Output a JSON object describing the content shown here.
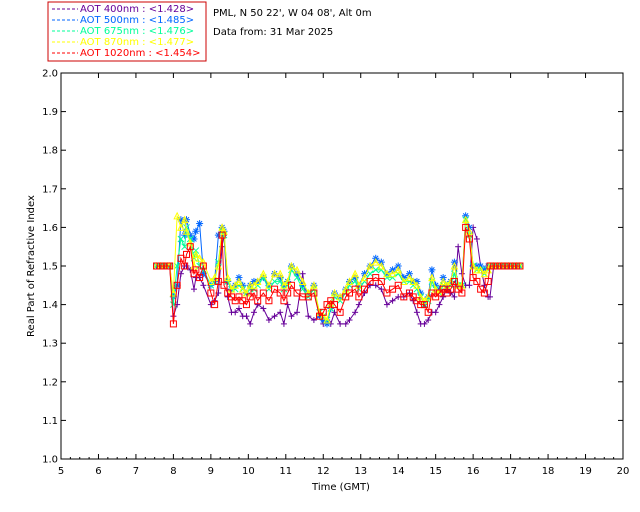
{
  "header": {
    "site": "PML, N 50 22', W 04 08', Alt 0m",
    "date": "Data from: 31 Mar 2025"
  },
  "chart_data": {
    "type": "scatter",
    "title": "",
    "xlabel": "Time (GMT)",
    "ylabel": "Real Part of Refractive Index",
    "xlim": [
      5,
      20
    ],
    "ylim": [
      1.0,
      2.0
    ],
    "x_ticks": [
      "5",
      "6",
      "7",
      "8",
      "9",
      "10",
      "11",
      "12",
      "13",
      "14",
      "15",
      "16",
      "17",
      "18",
      "19",
      "20"
    ],
    "y_ticks": [
      "1.0",
      "1.1",
      "1.2",
      "1.3",
      "1.4",
      "1.5",
      "1.6",
      "1.7",
      "1.8",
      "1.9",
      "2.0"
    ],
    "grid": false,
    "legend_position": "top-left",
    "series": [
      {
        "name": "AOT  400nm : <1.428>",
        "color": "#660099",
        "marker": "plus",
        "x": [
          7.55,
          7.65,
          7.75,
          7.85,
          7.9,
          8.0,
          8.1,
          8.2,
          8.3,
          8.35,
          8.45,
          8.55,
          8.6,
          8.7,
          8.8,
          9.0,
          9.1,
          9.2,
          9.3,
          9.35,
          9.45,
          9.55,
          9.65,
          9.75,
          9.85,
          9.95,
          10.05,
          10.15,
          10.25,
          10.4,
          10.55,
          10.7,
          10.85,
          10.95,
          11.05,
          11.15,
          11.3,
          11.45,
          11.6,
          11.75,
          11.9,
          12.0,
          12.1,
          12.2,
          12.3,
          12.45,
          12.6,
          12.7,
          12.85,
          12.95,
          13.1,
          13.25,
          13.4,
          13.55,
          13.7,
          13.85,
          14.0,
          14.15,
          14.3,
          14.4,
          14.5,
          14.6,
          14.7,
          14.8,
          14.9,
          15.0,
          15.1,
          15.2,
          15.3,
          15.4,
          15.5,
          15.6,
          15.7,
          15.8,
          15.9,
          16.0,
          16.1,
          16.2,
          16.3,
          16.4,
          16.45,
          16.55,
          16.65,
          16.75,
          16.85,
          16.95,
          17.05,
          17.15,
          17.25
        ],
        "y": [
          1.5,
          1.5,
          1.5,
          1.5,
          1.5,
          1.37,
          1.4,
          1.48,
          1.5,
          1.5,
          1.49,
          1.44,
          1.47,
          1.47,
          1.45,
          1.4,
          1.41,
          1.43,
          1.55,
          1.58,
          1.42,
          1.38,
          1.38,
          1.39,
          1.37,
          1.37,
          1.35,
          1.38,
          1.4,
          1.39,
          1.36,
          1.37,
          1.38,
          1.35,
          1.4,
          1.37,
          1.38,
          1.48,
          1.37,
          1.36,
          1.37,
          1.35,
          1.36,
          1.35,
          1.38,
          1.35,
          1.35,
          1.36,
          1.38,
          1.4,
          1.43,
          1.45,
          1.45,
          1.44,
          1.4,
          1.41,
          1.42,
          1.42,
          1.43,
          1.41,
          1.38,
          1.35,
          1.35,
          1.36,
          1.38,
          1.38,
          1.4,
          1.42,
          1.44,
          1.43,
          1.42,
          1.55,
          1.48,
          1.45,
          1.45,
          1.6,
          1.57,
          1.5,
          1.45,
          1.42,
          1.42,
          1.5,
          1.5,
          1.5,
          1.5,
          1.5,
          1.5,
          1.5,
          1.5
        ]
      },
      {
        "name": "AOT  500nm : <1.485>",
        "color": "#0066ff",
        "marker": "asterisk",
        "x": [
          7.55,
          7.65,
          7.75,
          7.85,
          7.9,
          8.0,
          8.1,
          8.2,
          8.3,
          8.35,
          8.45,
          8.55,
          8.6,
          8.7,
          8.8,
          9.0,
          9.1,
          9.2,
          9.3,
          9.35,
          9.45,
          9.55,
          9.65,
          9.75,
          9.85,
          9.95,
          10.05,
          10.15,
          10.25,
          10.4,
          10.55,
          10.7,
          10.85,
          10.95,
          11.05,
          11.15,
          11.3,
          11.45,
          11.6,
          11.75,
          11.9,
          12.0,
          12.1,
          12.2,
          12.3,
          12.45,
          12.6,
          12.7,
          12.85,
          12.95,
          13.1,
          13.25,
          13.4,
          13.55,
          13.7,
          13.85,
          14.0,
          14.15,
          14.3,
          14.4,
          14.5,
          14.6,
          14.7,
          14.8,
          14.9,
          15.0,
          15.1,
          15.2,
          15.3,
          15.4,
          15.5,
          15.6,
          15.7,
          15.8,
          15.9,
          16.0,
          16.1,
          16.2,
          16.3,
          16.4,
          16.45,
          16.55,
          16.65,
          16.75,
          16.85,
          16.95,
          17.05,
          17.15,
          17.25
        ],
        "y": [
          1.5,
          1.5,
          1.5,
          1.5,
          1.5,
          1.42,
          1.45,
          1.62,
          1.58,
          1.62,
          1.58,
          1.57,
          1.59,
          1.61,
          1.48,
          1.45,
          1.46,
          1.58,
          1.6,
          1.59,
          1.46,
          1.44,
          1.45,
          1.47,
          1.45,
          1.43,
          1.45,
          1.46,
          1.46,
          1.47,
          1.45,
          1.48,
          1.47,
          1.45,
          1.46,
          1.5,
          1.48,
          1.45,
          1.43,
          1.45,
          1.37,
          1.36,
          1.35,
          1.39,
          1.43,
          1.42,
          1.44,
          1.46,
          1.47,
          1.45,
          1.48,
          1.5,
          1.52,
          1.51,
          1.48,
          1.49,
          1.5,
          1.47,
          1.48,
          1.46,
          1.46,
          1.43,
          1.4,
          1.42,
          1.49,
          1.45,
          1.44,
          1.47,
          1.45,
          1.46,
          1.51,
          1.45,
          1.45,
          1.63,
          1.6,
          1.5,
          1.5,
          1.5,
          1.49,
          1.5,
          1.5,
          1.5,
          1.5,
          1.5,
          1.5,
          1.5,
          1.5,
          1.5,
          1.5
        ]
      },
      {
        "name": "AOT  675nm : <1.476>",
        "color": "#00ff99",
        "marker": "x",
        "x": [
          7.55,
          7.65,
          7.75,
          7.85,
          7.9,
          8.0,
          8.1,
          8.2,
          8.3,
          8.35,
          8.45,
          8.55,
          8.6,
          8.7,
          8.8,
          9.0,
          9.1,
          9.2,
          9.3,
          9.35,
          9.45,
          9.55,
          9.65,
          9.75,
          9.85,
          9.95,
          10.05,
          10.15,
          10.25,
          10.4,
          10.55,
          10.7,
          10.85,
          10.95,
          11.05,
          11.15,
          11.3,
          11.45,
          11.6,
          11.75,
          11.9,
          12.0,
          12.1,
          12.2,
          12.3,
          12.45,
          12.6,
          12.7,
          12.85,
          12.95,
          13.1,
          13.25,
          13.4,
          13.55,
          13.7,
          13.85,
          14.0,
          14.15,
          14.3,
          14.4,
          14.5,
          14.6,
          14.7,
          14.8,
          14.9,
          15.0,
          15.1,
          15.2,
          15.3,
          15.4,
          15.5,
          15.6,
          15.7,
          15.8,
          15.9,
          16.0,
          16.1,
          16.2,
          16.3,
          16.4,
          16.45,
          16.55,
          16.65,
          16.75,
          16.85,
          16.95,
          17.05,
          17.15,
          17.25
        ],
        "y": [
          1.5,
          1.5,
          1.5,
          1.5,
          1.5,
          1.4,
          1.5,
          1.57,
          1.55,
          1.6,
          1.57,
          1.52,
          1.54,
          1.5,
          1.49,
          1.45,
          1.46,
          1.51,
          1.59,
          1.58,
          1.46,
          1.44,
          1.44,
          1.45,
          1.44,
          1.43,
          1.44,
          1.44,
          1.45,
          1.47,
          1.44,
          1.46,
          1.46,
          1.44,
          1.45,
          1.49,
          1.47,
          1.44,
          1.42,
          1.44,
          1.38,
          1.37,
          1.36,
          1.39,
          1.42,
          1.41,
          1.43,
          1.45,
          1.46,
          1.44,
          1.46,
          1.48,
          1.49,
          1.49,
          1.47,
          1.47,
          1.48,
          1.46,
          1.46,
          1.45,
          1.44,
          1.42,
          1.4,
          1.41,
          1.46,
          1.44,
          1.43,
          1.45,
          1.44,
          1.45,
          1.48,
          1.45,
          1.45,
          1.62,
          1.58,
          1.5,
          1.49,
          1.49,
          1.48,
          1.49,
          1.5,
          1.5,
          1.5,
          1.5,
          1.5,
          1.5,
          1.5,
          1.5,
          1.5
        ]
      },
      {
        "name": "AOT  870nm : <1.477>",
        "color": "#ffff00",
        "marker": "triangle",
        "x": [
          7.55,
          7.65,
          7.75,
          7.85,
          7.9,
          8.0,
          8.1,
          8.2,
          8.3,
          8.35,
          8.45,
          8.55,
          8.6,
          8.7,
          8.8,
          9.0,
          9.1,
          9.2,
          9.3,
          9.35,
          9.45,
          9.55,
          9.65,
          9.75,
          9.85,
          9.95,
          10.05,
          10.15,
          10.25,
          10.4,
          10.55,
          10.7,
          10.85,
          10.95,
          11.05,
          11.15,
          11.3,
          11.45,
          11.6,
          11.75,
          11.9,
          12.0,
          12.1,
          12.2,
          12.3,
          12.45,
          12.6,
          12.7,
          12.85,
          12.95,
          13.1,
          13.25,
          13.4,
          13.55,
          13.7,
          13.85,
          14.0,
          14.15,
          14.3,
          14.4,
          14.5,
          14.6,
          14.7,
          14.8,
          14.9,
          15.0,
          15.1,
          15.2,
          15.3,
          15.4,
          15.5,
          15.6,
          15.7,
          15.8,
          15.9,
          16.0,
          16.1,
          16.2,
          16.3,
          16.4,
          16.45,
          16.55,
          16.65,
          16.75,
          16.85,
          16.95,
          17.05,
          17.15,
          17.25
        ],
        "y": [
          1.5,
          1.5,
          1.5,
          1.5,
          1.5,
          1.43,
          1.63,
          1.6,
          1.62,
          1.59,
          1.56,
          1.5,
          1.53,
          1.52,
          1.51,
          1.46,
          1.47,
          1.5,
          1.6,
          1.59,
          1.47,
          1.44,
          1.45,
          1.46,
          1.44,
          1.43,
          1.45,
          1.45,
          1.46,
          1.48,
          1.45,
          1.48,
          1.48,
          1.45,
          1.46,
          1.5,
          1.49,
          1.46,
          1.43,
          1.45,
          1.38,
          1.37,
          1.36,
          1.4,
          1.43,
          1.42,
          1.44,
          1.46,
          1.48,
          1.45,
          1.47,
          1.5,
          1.51,
          1.5,
          1.48,
          1.48,
          1.49,
          1.46,
          1.47,
          1.46,
          1.45,
          1.42,
          1.41,
          1.42,
          1.47,
          1.44,
          1.43,
          1.46,
          1.45,
          1.46,
          1.5,
          1.45,
          1.45,
          1.62,
          1.59,
          1.5,
          1.49,
          1.49,
          1.48,
          1.49,
          1.5,
          1.5,
          1.5,
          1.5,
          1.5,
          1.5,
          1.5,
          1.5,
          1.5
        ]
      },
      {
        "name": "AOT 1020nm : <1.454>",
        "color": "#ff0000",
        "marker": "square",
        "x": [
          7.55,
          7.65,
          7.75,
          7.85,
          7.9,
          8.0,
          8.1,
          8.2,
          8.3,
          8.35,
          8.45,
          8.55,
          8.6,
          8.7,
          8.8,
          9.0,
          9.1,
          9.2,
          9.3,
          9.35,
          9.45,
          9.55,
          9.65,
          9.75,
          9.85,
          9.95,
          10.05,
          10.15,
          10.25,
          10.4,
          10.55,
          10.7,
          10.85,
          10.95,
          11.05,
          11.15,
          11.3,
          11.45,
          11.6,
          11.75,
          11.9,
          12.0,
          12.1,
          12.2,
          12.3,
          12.45,
          12.6,
          12.7,
          12.85,
          12.95,
          13.1,
          13.25,
          13.4,
          13.55,
          13.7,
          13.85,
          14.0,
          14.15,
          14.3,
          14.4,
          14.5,
          14.6,
          14.7,
          14.8,
          14.9,
          15.0,
          15.1,
          15.2,
          15.3,
          15.4,
          15.5,
          15.6,
          15.7,
          15.8,
          15.9,
          16.0,
          16.1,
          16.2,
          16.3,
          16.4,
          16.45,
          16.55,
          16.65,
          16.75,
          16.85,
          16.95,
          17.05,
          17.15,
          17.25
        ],
        "y": [
          1.5,
          1.5,
          1.5,
          1.5,
          1.5,
          1.35,
          1.45,
          1.52,
          1.5,
          1.53,
          1.55,
          1.48,
          1.49,
          1.47,
          1.5,
          1.43,
          1.4,
          1.46,
          1.58,
          1.45,
          1.43,
          1.42,
          1.41,
          1.42,
          1.41,
          1.4,
          1.42,
          1.43,
          1.41,
          1.43,
          1.41,
          1.44,
          1.43,
          1.41,
          1.43,
          1.45,
          1.43,
          1.42,
          1.42,
          1.43,
          1.37,
          1.38,
          1.4,
          1.41,
          1.4,
          1.38,
          1.42,
          1.43,
          1.44,
          1.42,
          1.44,
          1.46,
          1.47,
          1.46,
          1.43,
          1.44,
          1.45,
          1.42,
          1.43,
          1.42,
          1.41,
          1.4,
          1.4,
          1.38,
          1.43,
          1.42,
          1.43,
          1.44,
          1.43,
          1.44,
          1.46,
          1.44,
          1.43,
          1.6,
          1.57,
          1.47,
          1.46,
          1.44,
          1.43,
          1.46,
          1.5,
          1.5,
          1.5,
          1.5,
          1.5,
          1.5,
          1.5,
          1.5,
          1.5
        ]
      }
    ]
  }
}
